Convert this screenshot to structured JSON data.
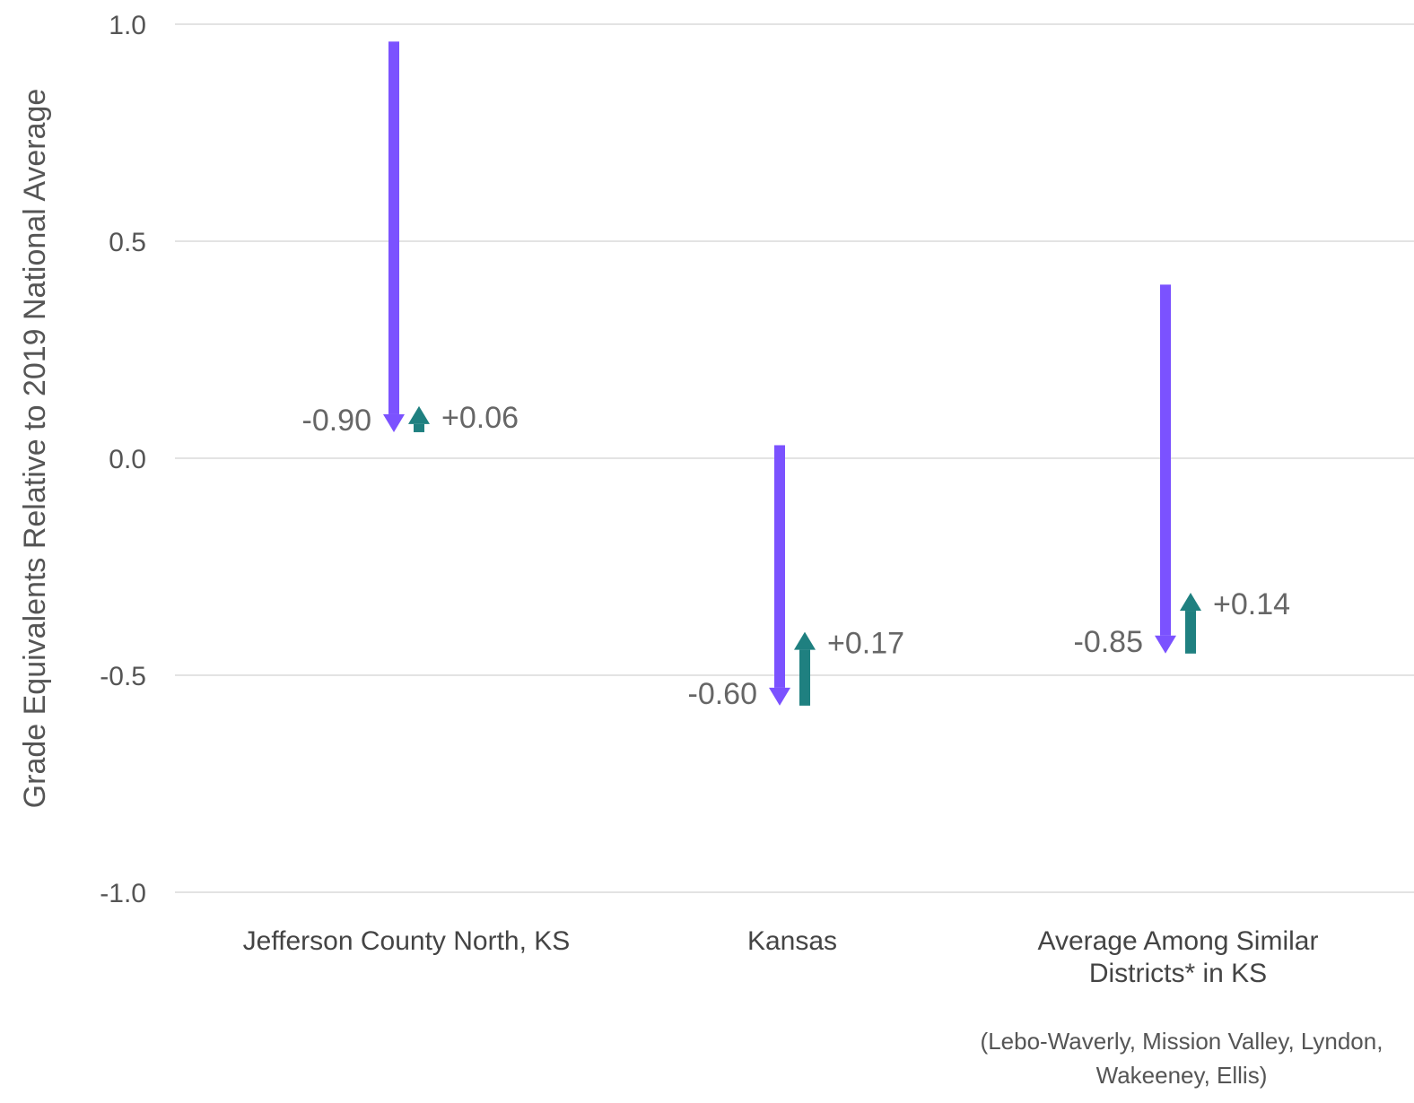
{
  "chart_data": {
    "type": "arrow",
    "ylabel": "Grade Equivalents Relative to 2019 National Average",
    "ylim": [
      -1.0,
      1.0
    ],
    "yticks": [
      1.0,
      0.5,
      0.0,
      -0.5,
      -1.0
    ],
    "ytick_labels": [
      "1.0",
      "0.5",
      "0.0",
      "-0.5",
      "-1.0"
    ],
    "grid": true,
    "colors": {
      "decline": "#7b52ff",
      "recovery": "#1f8080"
    },
    "categories": [
      {
        "label_lines": [
          "Jefferson County North, KS"
        ],
        "start": 0.96,
        "after_decline": 0.06,
        "after_recovery": 0.12,
        "decline_label": "-0.90",
        "recovery_label": "+0.06"
      },
      {
        "label_lines": [
          "Kansas"
        ],
        "start": 0.03,
        "after_decline": -0.57,
        "after_recovery": -0.4,
        "decline_label": "-0.60",
        "recovery_label": "+0.17"
      },
      {
        "label_lines": [
          "Average Among Similar",
          "Districts* in KS"
        ],
        "start": 0.4,
        "after_decline": -0.45,
        "after_recovery": -0.31,
        "decline_label": "-0.85",
        "recovery_label": "+0.14"
      }
    ],
    "footnote_lines": [
      "(Lebo-Waverly, Mission Valley, Lyndon,",
      "Wakeeney, Ellis)"
    ]
  }
}
